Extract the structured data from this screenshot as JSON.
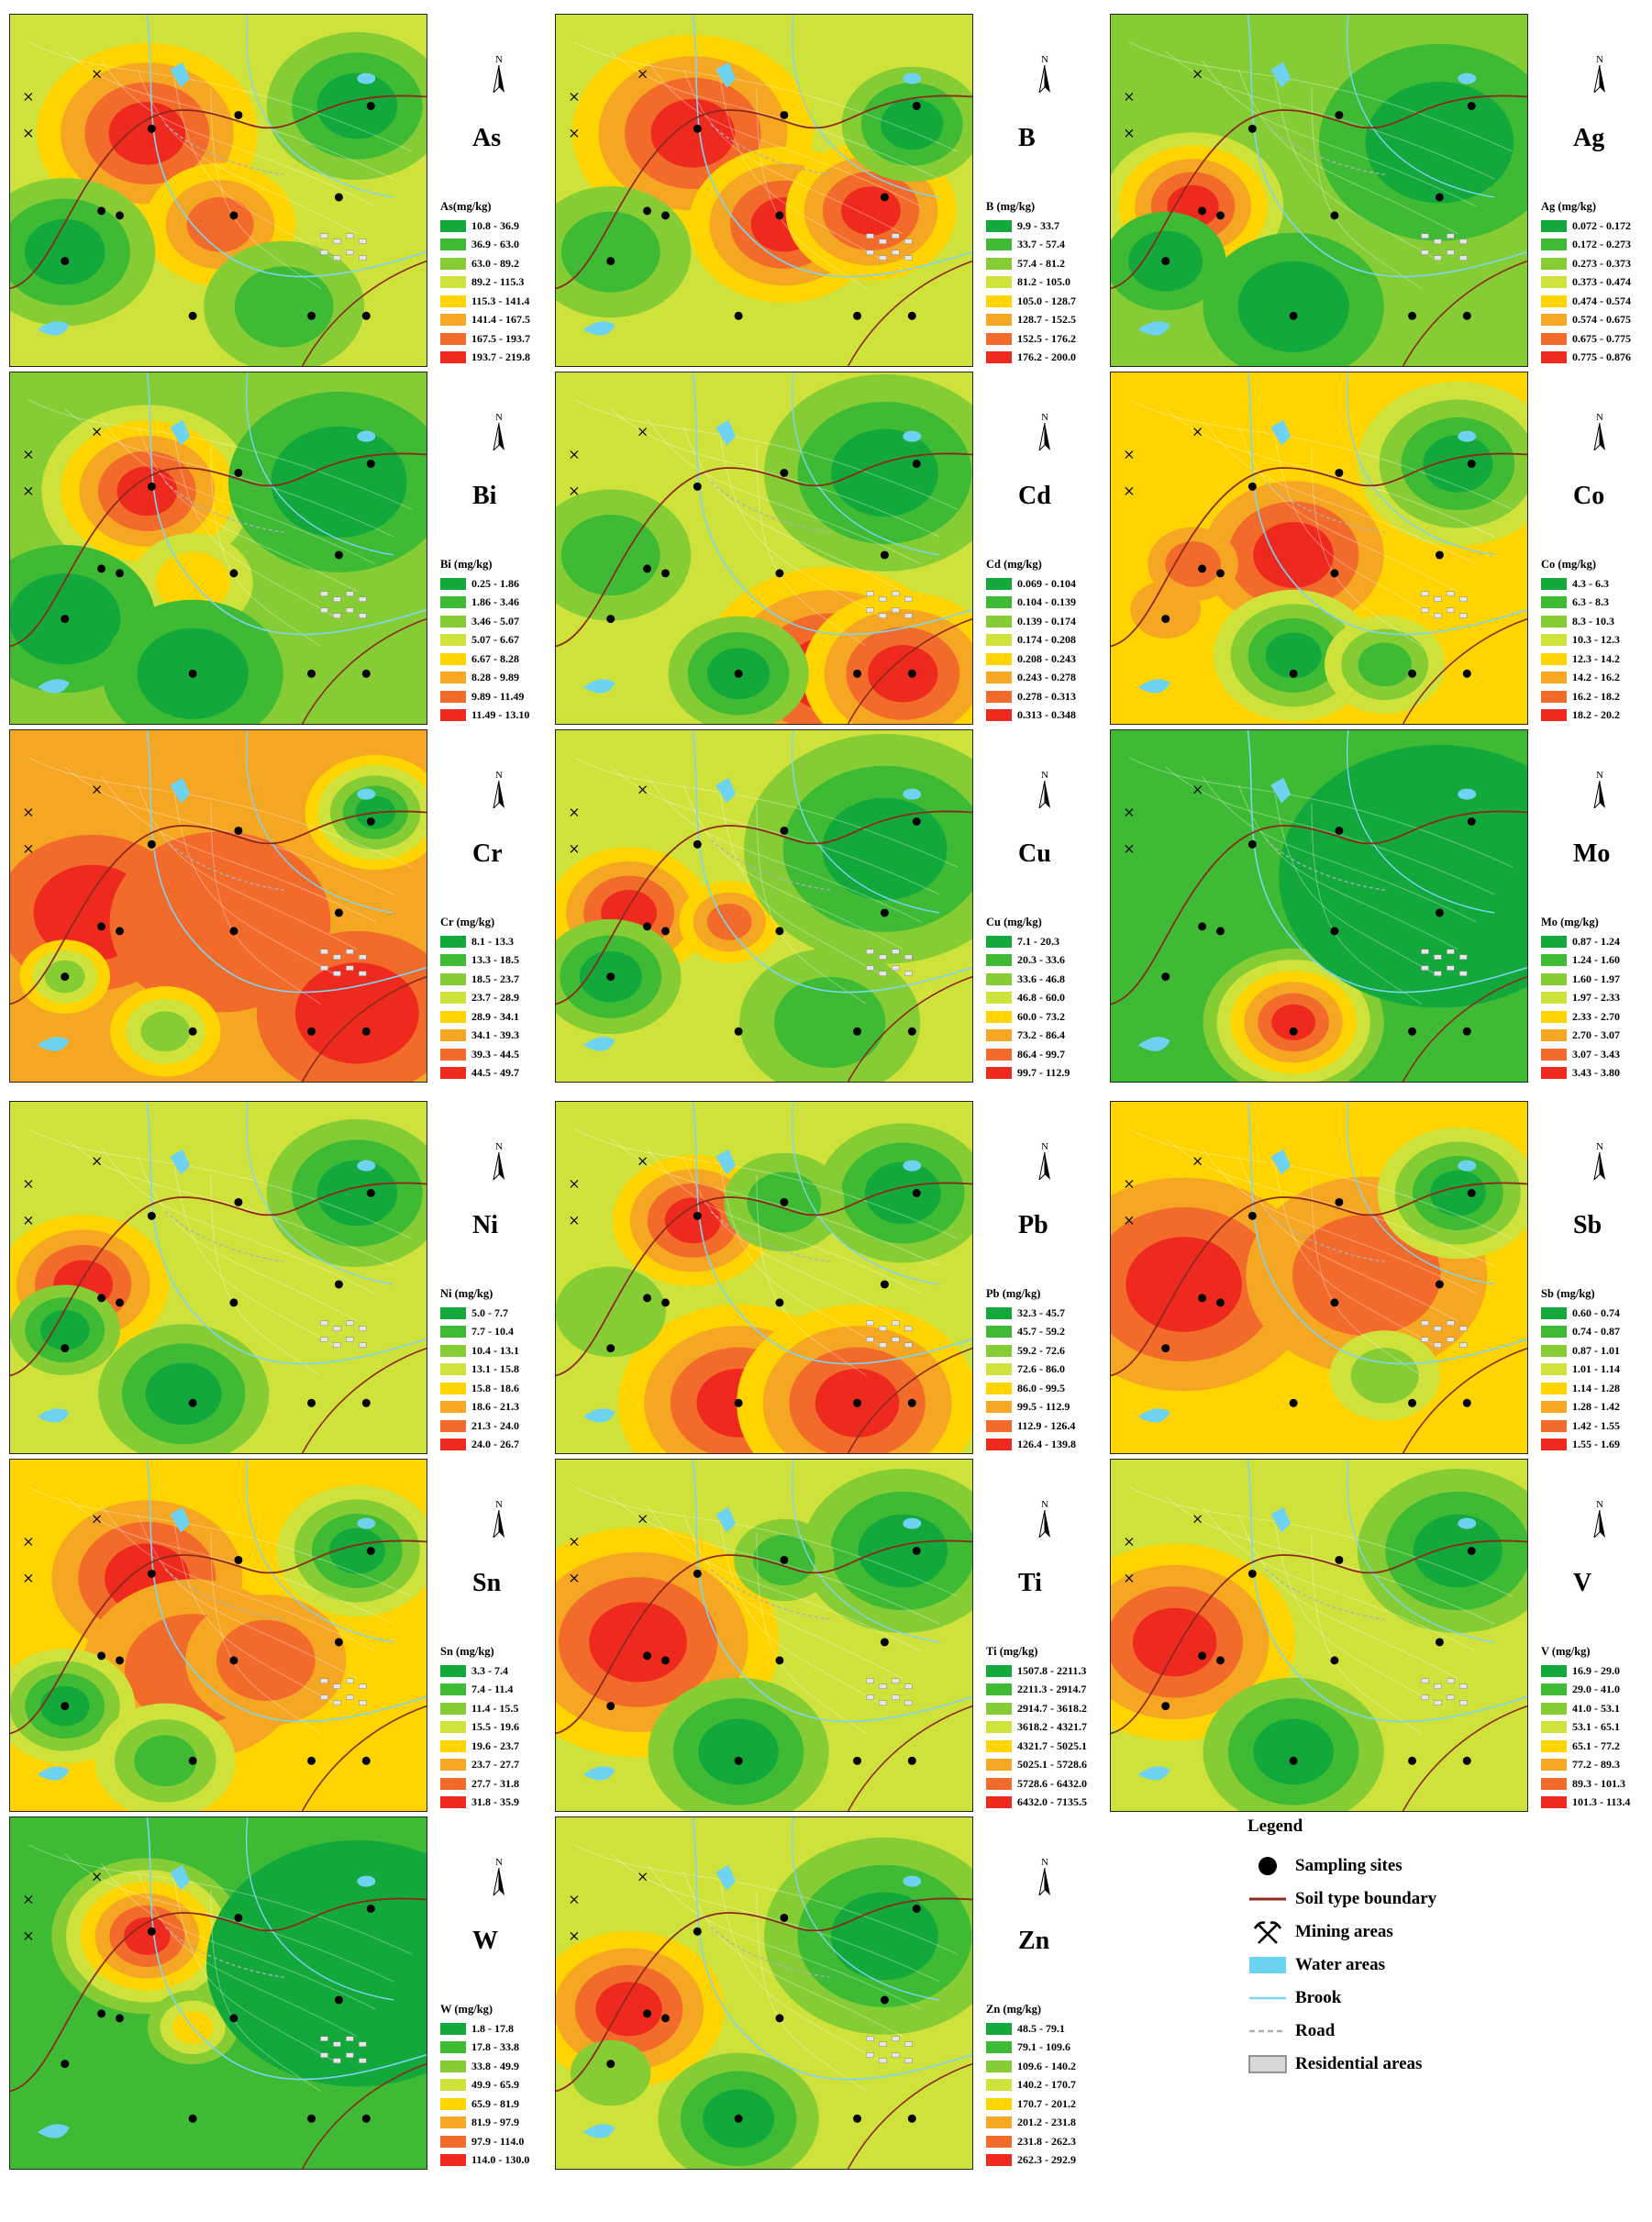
{
  "colors": [
    "#12a83c",
    "#3fba35",
    "#86cd35",
    "#cfe23c",
    "#ffd400",
    "#f5a623",
    "#f26b2a",
    "#ee2a1f"
  ],
  "panels": [
    {
      "element": "As",
      "legend_title": "As(mg/kg)",
      "ranges": [
        "10.8 - 36.9",
        "36.9 - 63.0",
        "63.0 - 89.2",
        "89.2 - 115.3",
        "115.3 - 141.4",
        "141.4 - 167.5",
        "167.5 - 193.7",
        "193.7 - 219.8"
      ]
    },
    {
      "element": "B",
      "legend_title": "B (mg/kg)",
      "ranges": [
        "9.9 - 33.7",
        "33.7 - 57.4",
        "57.4 - 81.2",
        "81.2 - 105.0",
        "105.0 - 128.7",
        "128.7 - 152.5",
        "152.5 - 176.2",
        "176.2 - 200.0"
      ]
    },
    {
      "element": "Ag",
      "legend_title": "Ag (mg/kg)",
      "ranges": [
        "0.072 - 0.172",
        "0.172 - 0.273",
        "0.273 - 0.373",
        "0.373 - 0.474",
        "0.474 - 0.574",
        "0.574 - 0.675",
        "0.675 - 0.775",
        "0.775 - 0.876"
      ]
    },
    {
      "element": "Bi",
      "legend_title": "Bi (mg/kg)",
      "ranges": [
        "0.25 - 1.86",
        "1.86 - 3.46",
        "3.46 - 5.07",
        "5.07 - 6.67",
        "6.67 - 8.28",
        "8.28 - 9.89",
        "9.89 - 11.49",
        "11.49 - 13.10"
      ]
    },
    {
      "element": "Cd",
      "legend_title": "Cd (mg/kg)",
      "ranges": [
        "0.069 - 0.104",
        "0.104 - 0.139",
        "0.139 - 0.174",
        "0.174 - 0.208",
        "0.208 - 0.243",
        "0.243 - 0.278",
        "0.278 - 0.313",
        "0.313 - 0.348"
      ]
    },
    {
      "element": "Co",
      "legend_title": "Co (mg/kg)",
      "ranges": [
        "4.3 - 6.3",
        "6.3 - 8.3",
        "8.3 - 10.3",
        "10.3 - 12.3",
        "12.3 - 14.2",
        "14.2 - 16.2",
        "16.2 - 18.2",
        "18.2 - 20.2"
      ]
    },
    {
      "element": "Cr",
      "legend_title": "Cr (mg/kg)",
      "ranges": [
        "8.1 - 13.3",
        "13.3 - 18.5",
        "18.5 - 23.7",
        "23.7 - 28.9",
        "28.9 - 34.1",
        "34.1 - 39.3",
        "39.3 - 44.5",
        "44.5 - 49.7"
      ]
    },
    {
      "element": "Cu",
      "legend_title": "Cu (mg/kg)",
      "ranges": [
        "7.1 - 20.3",
        "20.3 - 33.6",
        "33.6 - 46.8",
        "46.8 - 60.0",
        "60.0 - 73.2",
        "73.2 - 86.4",
        "86.4 - 99.7",
        "99.7 - 112.9"
      ]
    },
    {
      "element": "Mo",
      "legend_title": "Mo (mg/kg)",
      "ranges": [
        "0.87 - 1.24",
        "1.24 - 1.60",
        "1.60 - 1.97",
        "1.97 - 2.33",
        "2.33 - 2.70",
        "2.70 - 3.07",
        "3.07 - 3.43",
        "3.43 - 3.80"
      ]
    },
    {
      "element": "Ni",
      "legend_title": "Ni (mg/kg)",
      "ranges": [
        "5.0 - 7.7",
        "7.7 - 10.4",
        "10.4 - 13.1",
        "13.1 - 15.8",
        "15.8 - 18.6",
        "18.6 - 21.3",
        "21.3 - 24.0",
        "24.0 - 26.7"
      ]
    },
    {
      "element": "Pb",
      "legend_title": "Pb (mg/kg)",
      "ranges": [
        "32.3 - 45.7",
        "45.7 - 59.2",
        "59.2 - 72.6",
        "72.6 - 86.0",
        "86.0 - 99.5",
        "99.5 - 112.9",
        "112.9 - 126.4",
        "126.4 - 139.8"
      ]
    },
    {
      "element": "Sb",
      "legend_title": "Sb (mg/kg)",
      "ranges": [
        "0.60 - 0.74",
        "0.74 - 0.87",
        "0.87 - 1.01",
        "1.01 - 1.14",
        "1.14 - 1.28",
        "1.28 - 1.42",
        "1.42 - 1.55",
        "1.55 - 1.69"
      ]
    },
    {
      "element": "Sn",
      "legend_title": "Sn (mg/kg)",
      "ranges": [
        "3.3 - 7.4",
        "7.4 - 11.4",
        "11.4 - 15.5",
        "15.5 - 19.6",
        "19.6 - 23.7",
        "23.7 - 27.7",
        "27.7 - 31.8",
        "31.8 - 35.9"
      ]
    },
    {
      "element": "Ti",
      "legend_title": "Ti (mg/kg)",
      "ranges": [
        "1507.8 - 2211.3",
        "2211.3 - 2914.7",
        "2914.7 - 3618.2",
        "3618.2 - 4321.7",
        "4321.7 - 5025.1",
        "5025.1 - 5728.6",
        "5728.6 - 6432.0",
        "6432.0 - 7135.5"
      ]
    },
    {
      "element": "V",
      "legend_title": "V (mg/kg)",
      "ranges": [
        "16.9 - 29.0",
        "29.0 - 41.0",
        "41.0 - 53.1",
        "53.1 - 65.1",
        "65.1 - 77.2",
        "77.2 - 89.3",
        "89.3 - 101.3",
        "101.3 - 113.4"
      ]
    },
    {
      "element": "W",
      "legend_title": "W (mg/kg)",
      "ranges": [
        "1.8 - 17.8",
        "17.8 - 33.8",
        "33.8 - 49.9",
        "49.9 - 65.9",
        "65.9 - 81.9",
        "81.9 - 97.9",
        "97.9 - 114.0",
        "114.0 - 130.0"
      ]
    },
    {
      "element": "Zn",
      "legend_title": "Zn (mg/kg)",
      "ranges": [
        "48.5 - 79.1",
        "79.1 - 109.6",
        "109.6 - 140.2",
        "140.2 - 170.7",
        "170.7 - 201.2",
        "201.2 - 231.8",
        "231.8 - 262.3",
        "262.3 - 292.9"
      ]
    }
  ],
  "north_letter": "N",
  "main_legend": {
    "title": "Legend",
    "items": [
      {
        "label": "Sampling sites",
        "icon": "sampling-site-icon"
      },
      {
        "label": "Soil type boundary",
        "icon": "soil-boundary-icon"
      },
      {
        "label": "Mining areas",
        "icon": "mining-area-icon"
      },
      {
        "label": "Water areas",
        "icon": "water-area-icon"
      },
      {
        "label": "Brook",
        "icon": "brook-icon"
      },
      {
        "label": "Road",
        "icon": "road-icon"
      },
      {
        "label": "Residential areas",
        "icon": "residential-area-icon"
      }
    ]
  }
}
